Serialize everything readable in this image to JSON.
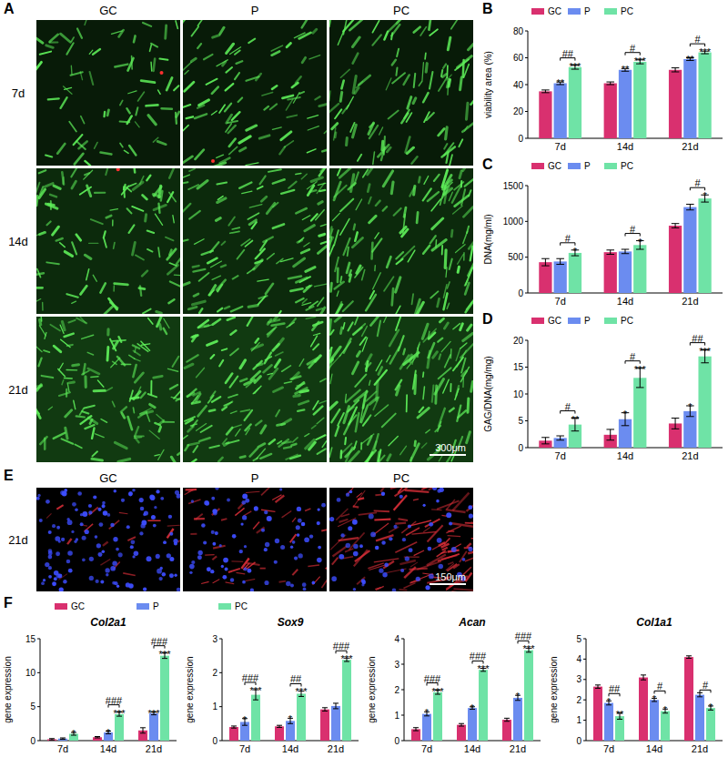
{
  "panel_labels": [
    "A",
    "B",
    "C",
    "D",
    "E",
    "F"
  ],
  "micrographs": [
    {
      "columns": [
        "GC",
        "P",
        "PC"
      ],
      "rows": [
        "7d",
        "14d",
        "21d"
      ],
      "scale_bar": "300μm"
    },
    {
      "columns": [
        "GC",
        "P",
        "PC"
      ],
      "rows": [
        "21d"
      ],
      "scale_bar": "150μm"
    }
  ],
  "chart_data": [
    {
      "type": "bar",
      "y_label": "viability area (%)",
      "categories": [
        "7d",
        "14d",
        "21d"
      ],
      "ylim": [
        0,
        80
      ],
      "yticks": [
        0,
        20,
        40,
        60,
        80
      ],
      "legend": "top-left",
      "series": [
        {
          "name": "GC",
          "color": "#d9306f",
          "values": [
            35,
            41,
            51
          ],
          "errors": [
            1,
            1,
            1.5
          ]
        },
        {
          "name": "P",
          "color": "#6b8cf0",
          "values": [
            41,
            51,
            59
          ],
          "errors": [
            1,
            1,
            1
          ],
          "stars": [
            "**",
            "**",
            "**"
          ]
        },
        {
          "name": "PC",
          "color": "#6fe3a6",
          "values": [
            53,
            57,
            64
          ],
          "errors": [
            1.5,
            1.5,
            1
          ],
          "stars": [
            "***",
            "***",
            "***"
          ]
        }
      ],
      "bracket_labels": [
        "##",
        "#",
        "#"
      ]
    },
    {
      "type": "bar",
      "y_label": "DNA(mg/ml)",
      "categories": [
        "7d",
        "14d",
        "21d"
      ],
      "ylim": [
        0,
        1500
      ],
      "yticks": [
        0,
        500,
        1000,
        1500
      ],
      "legend": "top-left",
      "series": [
        {
          "name": "GC",
          "color": "#d9306f",
          "values": [
            430,
            570,
            940
          ],
          "errors": [
            50,
            30,
            30
          ]
        },
        {
          "name": "P",
          "color": "#6b8cf0",
          "values": [
            440,
            580,
            1200
          ],
          "errors": [
            40,
            30,
            40
          ]
        },
        {
          "name": "PC",
          "color": "#6fe3a6",
          "values": [
            560,
            670,
            1320
          ],
          "errors": [
            40,
            60,
            50
          ],
          "stars": [
            "*",
            "*",
            "*"
          ]
        }
      ],
      "bracket_labels": [
        "#",
        "#",
        "#"
      ]
    },
    {
      "type": "bar",
      "y_label": "GAG/DNA(mg/mg)",
      "categories": [
        "7d",
        "14d",
        "21d"
      ],
      "ylim": [
        0,
        20
      ],
      "yticks": [
        0,
        5,
        10,
        15,
        20
      ],
      "legend": "top-left",
      "series": [
        {
          "name": "GC",
          "color": "#d9306f",
          "values": [
            1.3,
            2.4,
            4.5
          ],
          "errors": [
            0.6,
            1,
            1
          ]
        },
        {
          "name": "P",
          "color": "#6b8cf0",
          "values": [
            1.8,
            5.3,
            6.8
          ],
          "errors": [
            0.4,
            1.2,
            1
          ],
          "stars": [
            null,
            "*",
            "*"
          ]
        },
        {
          "name": "PC",
          "color": "#6fe3a6",
          "values": [
            4.3,
            13,
            17
          ],
          "errors": [
            1.2,
            1.8,
            1.2
          ],
          "stars": [
            "**",
            "***",
            "***"
          ]
        }
      ],
      "bracket_labels": [
        "#",
        "#",
        "##"
      ]
    },
    {
      "type": "bar",
      "title": "Col2a1",
      "y_label": "gene expression",
      "categories": [
        "7d",
        "14d",
        "21d"
      ],
      "ylim": [
        0,
        15
      ],
      "yticks": [
        0,
        5,
        10,
        15
      ],
      "legend": "top",
      "series": [
        {
          "name": "GC",
          "color": "#d9306f",
          "values": [
            0.2,
            0.5,
            1.5
          ],
          "errors": [
            0.1,
            0.1,
            0.4
          ]
        },
        {
          "name": "P",
          "color": "#6b8cf0",
          "values": [
            0.3,
            1.2,
            4
          ],
          "errors": [
            0.1,
            0.2,
            0.2
          ],
          "stars": [
            null,
            "*",
            "***"
          ]
        },
        {
          "name": "PC",
          "color": "#6fe3a6",
          "values": [
            1,
            3.9,
            12.5
          ],
          "errors": [
            0.2,
            0.3,
            0.4
          ],
          "stars": [
            "*",
            "***",
            "***"
          ]
        }
      ],
      "bracket_labels": [
        null,
        "###",
        "###"
      ]
    },
    {
      "type": "bar",
      "title": "Sox9",
      "y_label": "gene expression",
      "categories": [
        "7d",
        "14d",
        "21d"
      ],
      "ylim": [
        0,
        3
      ],
      "yticks": [
        0,
        1,
        2,
        3
      ],
      "series": [
        {
          "name": "GC",
          "color": "#d9306f",
          "values": [
            0.4,
            0.42,
            0.92
          ],
          "errors": [
            0.03,
            0.03,
            0.05
          ]
        },
        {
          "name": "P",
          "color": "#6b8cf0",
          "values": [
            0.55,
            0.58,
            1.02
          ],
          "errors": [
            0.1,
            0.08,
            0.08
          ],
          "stars": [
            "*",
            "*",
            null
          ]
        },
        {
          "name": "PC",
          "color": "#6fe3a6",
          "values": [
            1.35,
            1.38,
            2.38
          ],
          "errors": [
            0.15,
            0.08,
            0.05
          ],
          "stars": [
            "***",
            "***",
            "***"
          ]
        }
      ],
      "bracket_labels": [
        "###",
        "##",
        "###"
      ]
    },
    {
      "type": "bar",
      "title": "Acan",
      "y_label": "gene expression",
      "categories": [
        "7d",
        "14d",
        "21d"
      ],
      "ylim": [
        0,
        4
      ],
      "yticks": [
        0,
        1,
        2,
        3,
        4
      ],
      "series": [
        {
          "name": "GC",
          "color": "#d9306f",
          "values": [
            0.45,
            0.62,
            0.82
          ],
          "errors": [
            0.06,
            0.05,
            0.06
          ]
        },
        {
          "name": "P",
          "color": "#6b8cf0",
          "values": [
            1.05,
            1.28,
            1.68
          ],
          "errors": [
            0.08,
            0.05,
            0.1
          ],
          "stars": [
            "*",
            "*",
            "*"
          ]
        },
        {
          "name": "PC",
          "color": "#6fe3a6",
          "values": [
            1.9,
            2.78,
            3.55
          ],
          "errors": [
            0.08,
            0.06,
            0.08
          ],
          "stars": [
            "***",
            "***",
            "***"
          ]
        }
      ],
      "bracket_labels": [
        "###",
        "###",
        "###"
      ]
    },
    {
      "type": "bar",
      "title": "Col1a1",
      "y_label": "gene expression",
      "categories": [
        "7d",
        "14d",
        "21d"
      ],
      "ylim": [
        0,
        5
      ],
      "yticks": [
        0,
        1,
        2,
        3,
        4,
        5
      ],
      "series": [
        {
          "name": "GC",
          "color": "#d9306f",
          "values": [
            2.65,
            3.1,
            4.1
          ],
          "errors": [
            0.08,
            0.12,
            0.06
          ]
        },
        {
          "name": "P",
          "color": "#6b8cf0",
          "values": [
            1.85,
            2,
            2.25
          ],
          "errors": [
            0.1,
            0.08,
            0.1
          ],
          "stars": [
            "*",
            "*",
            null
          ]
        },
        {
          "name": "PC",
          "color": "#6fe3a6",
          "values": [
            1.2,
            1.45,
            1.6
          ],
          "errors": [
            0.15,
            0.1,
            0.1
          ],
          "stars": [
            "**",
            "*",
            "*"
          ]
        }
      ],
      "bracket_labels": [
        "##",
        "#",
        "#"
      ]
    }
  ]
}
